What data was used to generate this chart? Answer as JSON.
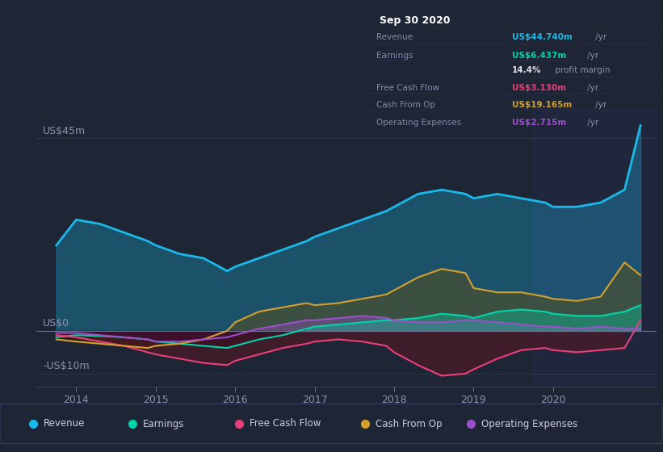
{
  "bg_color": "#1e2535",
  "plot_bg_color": "#1e2535",
  "grid_color": "#2a3050",
  "title": "Sep 30 2020",
  "ylabel_top": "US$45m",
  "ylabel_zero": "US$0",
  "ylabel_neg": "-US$10m",
  "xlim": [
    2013.5,
    2021.3
  ],
  "ylim": [
    -13,
    52
  ],
  "colors": {
    "revenue": "#1ab8e8",
    "earnings": "#00d4a8",
    "free_cash_flow": "#e8407a",
    "cash_from_op": "#d4a030",
    "operating_expenses": "#9b4fc8"
  },
  "revenue_x": [
    2013.75,
    2014.0,
    2014.3,
    2014.6,
    2014.9,
    2015.0,
    2015.3,
    2015.6,
    2015.9,
    2016.0,
    2016.3,
    2016.6,
    2016.9,
    2017.0,
    2017.3,
    2017.6,
    2017.9,
    2018.0,
    2018.3,
    2018.6,
    2018.9,
    2019.0,
    2019.3,
    2019.6,
    2019.9,
    2020.0,
    2020.3,
    2020.6,
    2020.9,
    2021.1
  ],
  "revenue_y": [
    20,
    26,
    25,
    23,
    21,
    20,
    18,
    17,
    14,
    15,
    17,
    19,
    21,
    22,
    24,
    26,
    28,
    29,
    32,
    33,
    32,
    31,
    32,
    31,
    30,
    29,
    29,
    30,
    33,
    48
  ],
  "earnings_x": [
    2013.75,
    2014.0,
    2014.3,
    2014.6,
    2014.9,
    2015.0,
    2015.3,
    2015.6,
    2015.9,
    2016.0,
    2016.3,
    2016.6,
    2016.9,
    2017.0,
    2017.3,
    2017.6,
    2017.9,
    2018.0,
    2018.3,
    2018.6,
    2018.9,
    2019.0,
    2019.3,
    2019.6,
    2019.9,
    2020.0,
    2020.3,
    2020.6,
    2020.9,
    2021.1
  ],
  "earnings_y": [
    -1.5,
    -1.0,
    -1.2,
    -1.5,
    -2.0,
    -2.5,
    -3.0,
    -3.5,
    -4.0,
    -3.5,
    -2.0,
    -1.0,
    0.5,
    1.0,
    1.5,
    2.0,
    2.5,
    2.5,
    3.0,
    4.0,
    3.5,
    3.0,
    4.5,
    5.0,
    4.5,
    4.0,
    3.5,
    3.5,
    4.5,
    6.0
  ],
  "free_cash_flow_x": [
    2013.75,
    2014.0,
    2014.3,
    2014.6,
    2014.9,
    2015.0,
    2015.3,
    2015.6,
    2015.9,
    2016.0,
    2016.3,
    2016.6,
    2016.9,
    2017.0,
    2017.3,
    2017.6,
    2017.9,
    2018.0,
    2018.3,
    2018.6,
    2018.9,
    2019.0,
    2019.3,
    2019.6,
    2019.9,
    2020.0,
    2020.3,
    2020.6,
    2020.9,
    2021.1
  ],
  "free_cash_flow_y": [
    -1.0,
    -1.5,
    -2.5,
    -3.5,
    -5.0,
    -5.5,
    -6.5,
    -7.5,
    -8.0,
    -7.0,
    -5.5,
    -4.0,
    -3.0,
    -2.5,
    -2.0,
    -2.5,
    -3.5,
    -5.0,
    -8.0,
    -10.5,
    -10.0,
    -9.0,
    -6.5,
    -4.5,
    -4.0,
    -4.5,
    -5.0,
    -4.5,
    -4.0,
    2.5
  ],
  "cash_from_op_x": [
    2013.75,
    2014.0,
    2014.3,
    2014.6,
    2014.9,
    2015.0,
    2015.3,
    2015.6,
    2015.9,
    2016.0,
    2016.3,
    2016.6,
    2016.9,
    2017.0,
    2017.3,
    2017.6,
    2017.9,
    2018.0,
    2018.3,
    2018.6,
    2018.9,
    2019.0,
    2019.3,
    2019.6,
    2019.9,
    2020.0,
    2020.3,
    2020.6,
    2020.9,
    2021.1
  ],
  "cash_from_op_y": [
    -2.0,
    -2.5,
    -3.0,
    -3.5,
    -4.0,
    -3.5,
    -3.0,
    -2.0,
    0.0,
    2.0,
    4.5,
    5.5,
    6.5,
    6.0,
    6.5,
    7.5,
    8.5,
    9.5,
    12.5,
    14.5,
    13.5,
    10.0,
    9.0,
    9.0,
    8.0,
    7.5,
    7.0,
    8.0,
    16.0,
    13.0
  ],
  "op_expenses_x": [
    2013.75,
    2014.0,
    2014.3,
    2014.6,
    2014.9,
    2015.0,
    2015.3,
    2015.6,
    2015.9,
    2016.0,
    2016.3,
    2016.6,
    2016.9,
    2017.0,
    2017.3,
    2017.6,
    2017.9,
    2018.0,
    2018.3,
    2018.6,
    2018.9,
    2019.0,
    2019.3,
    2019.6,
    2019.9,
    2020.0,
    2020.3,
    2020.6,
    2020.9,
    2021.1
  ],
  "op_expenses_y": [
    -0.5,
    -0.5,
    -1.0,
    -1.5,
    -2.0,
    -2.5,
    -2.5,
    -2.0,
    -1.5,
    -1.0,
    0.5,
    1.5,
    2.5,
    2.5,
    3.0,
    3.5,
    3.0,
    2.5,
    2.0,
    2.0,
    2.5,
    2.5,
    2.0,
    1.5,
    1.0,
    1.0,
    0.5,
    1.0,
    0.5,
    0.5
  ],
  "highlight_start": 2019.75,
  "highlight_end": 2021.3
}
